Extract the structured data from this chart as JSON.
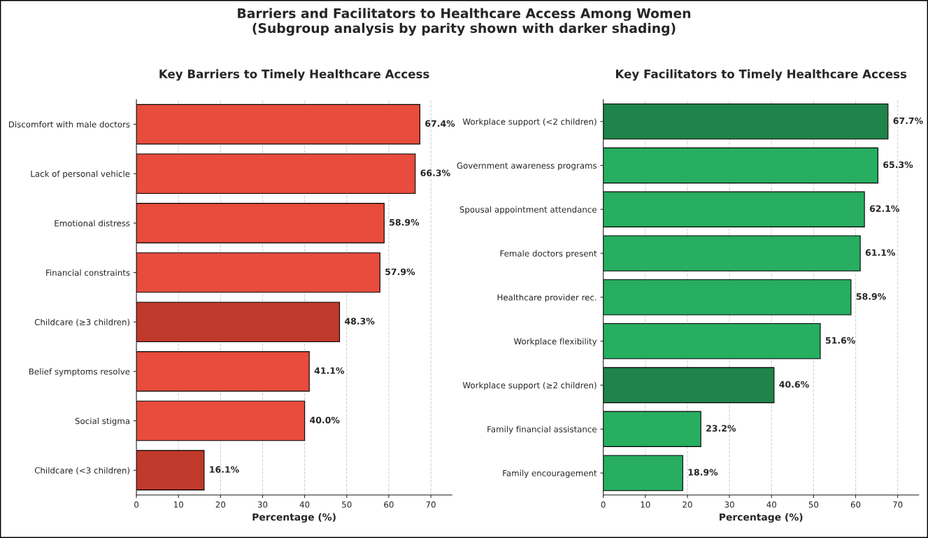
{
  "chart_data": [
    {
      "type": "bar",
      "orientation": "horizontal",
      "title": "Key Barriers to Timely Healthcare Access",
      "xlabel": "Percentage (%)",
      "annotations": [
        "Barriers and Facilitators to Healthcare Access Among Women\n(Subgroup analysis by parity shown with darker shading)"
      ],
      "categories": [
        "Discomfort with male doctors",
        "Lack of personal vehicle",
        "Emotional distress",
        "Financial constraints",
        "Childcare (≥3 children)",
        "Belief symptoms resolve",
        "Social stigma",
        "Childcare (<3 children)"
      ],
      "values": [
        67.4,
        66.3,
        58.9,
        57.9,
        48.3,
        41.1,
        40.0,
        16.1
      ],
      "colors": [
        "#e74c3c",
        "#e74c3c",
        "#e74c3c",
        "#e74c3c",
        "#c0392b",
        "#e74c3c",
        "#e74c3c",
        "#c0392b"
      ],
      "value_labels": [
        "67.4%",
        "66.3%",
        "58.9%",
        "57.9%",
        "48.3%",
        "41.1%",
        "40.0%",
        "16.1%"
      ],
      "xlim": [
        0,
        75
      ],
      "xticks": [
        0,
        10,
        20,
        30,
        40,
        50,
        60,
        70
      ],
      "grid": "x",
      "legend": false
    },
    {
      "type": "bar",
      "orientation": "horizontal",
      "title": "Key Facilitators to Timely Healthcare Access",
      "xlabel": "Percentage (%)",
      "categories": [
        "Workplace support (<2 children)",
        "Government awareness programs",
        "Spousal appointment attendance",
        "Female doctors present",
        "Healthcare provider rec.",
        "Workplace flexibility",
        "Workplace support (≥2 children)",
        "Family financial assistance",
        "Family encouragement"
      ],
      "values": [
        67.7,
        65.3,
        62.1,
        61.1,
        58.9,
        51.6,
        40.6,
        23.2,
        18.9
      ],
      "colors": [
        "#1e8449",
        "#27ae60",
        "#27ae60",
        "#27ae60",
        "#27ae60",
        "#27ae60",
        "#1e8449",
        "#27ae60",
        "#27ae60"
      ],
      "value_labels": [
        "67.7%",
        "65.3%",
        "62.1%",
        "61.1%",
        "58.9%",
        "51.6%",
        "40.6%",
        "23.2%",
        "18.9%"
      ],
      "xlim": [
        0,
        75
      ],
      "xticks": [
        0,
        10,
        20,
        30,
        40,
        50,
        60,
        70
      ],
      "grid": "x",
      "legend": false
    }
  ]
}
